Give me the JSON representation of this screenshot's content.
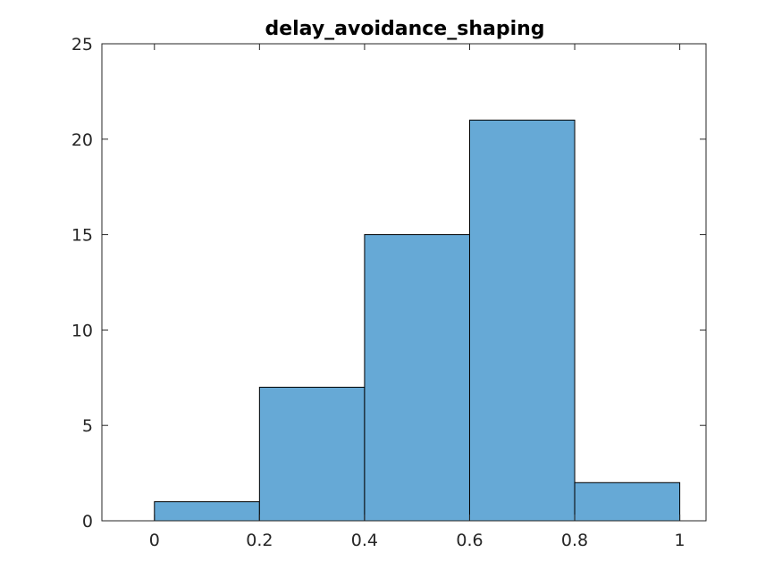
{
  "chart_data": {
    "type": "bar",
    "title": "delay_avoidance_shaping",
    "xlabel": "",
    "ylabel": "",
    "bin_edges": [
      0,
      0.2,
      0.4,
      0.6,
      0.8,
      1
    ],
    "values": [
      1,
      7,
      15,
      21,
      2
    ],
    "xlim": [
      -0.1,
      1.05
    ],
    "ylim": [
      0,
      25
    ],
    "xticks": [
      0,
      0.2,
      0.4,
      0.6,
      0.8,
      1
    ],
    "xtick_labels": [
      "0",
      "0.2",
      "0.4",
      "0.6",
      "0.8",
      "1"
    ],
    "yticks": [
      0,
      5,
      10,
      15,
      20,
      25
    ],
    "ytick_labels": [
      "0",
      "5",
      "10",
      "15",
      "20",
      "25"
    ],
    "grid": false,
    "legend": "none",
    "bar_color": "#66a9d6",
    "bar_edge_color": "#000000"
  }
}
